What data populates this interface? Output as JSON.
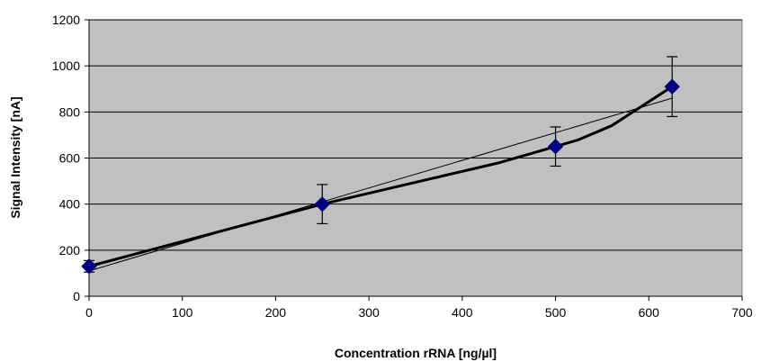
{
  "chart_data": {
    "type": "scatter",
    "title": "",
    "xlabel": "Concentration rRNA [ng/µl]",
    "ylabel": "Signal Intensity [nA]",
    "xlim": [
      0,
      700
    ],
    "ylim": [
      0,
      1200
    ],
    "x_ticks": [
      "0",
      "100",
      "200",
      "300",
      "400",
      "500",
      "600",
      "700"
    ],
    "y_ticks": [
      "0",
      "200",
      "400",
      "600",
      "800",
      "1000",
      "1200"
    ],
    "x_tick_values": [
      0,
      100,
      200,
      300,
      400,
      500,
      600,
      700
    ],
    "y_tick_values": [
      0,
      200,
      400,
      600,
      800,
      1000,
      1200
    ],
    "grid": "horizontal",
    "legend": "none",
    "plot_background": "#c0c0c0",
    "series": [
      {
        "marker": "diamond",
        "color": "#000080",
        "x": [
          0,
          250,
          500,
          625
        ],
        "y": [
          130,
          400,
          650,
          910
        ],
        "error": [
          25,
          85,
          85,
          130
        ]
      }
    ],
    "smoothed_line": {
      "color": "#000000",
      "x": [
        0,
        250,
        440,
        500,
        525,
        560,
        625
      ],
      "y": [
        130,
        400,
        580,
        650,
        680,
        740,
        910
      ]
    },
    "trendline": {
      "color": "#000000",
      "x": [
        0,
        625
      ],
      "y": [
        110,
        860
      ]
    }
  }
}
